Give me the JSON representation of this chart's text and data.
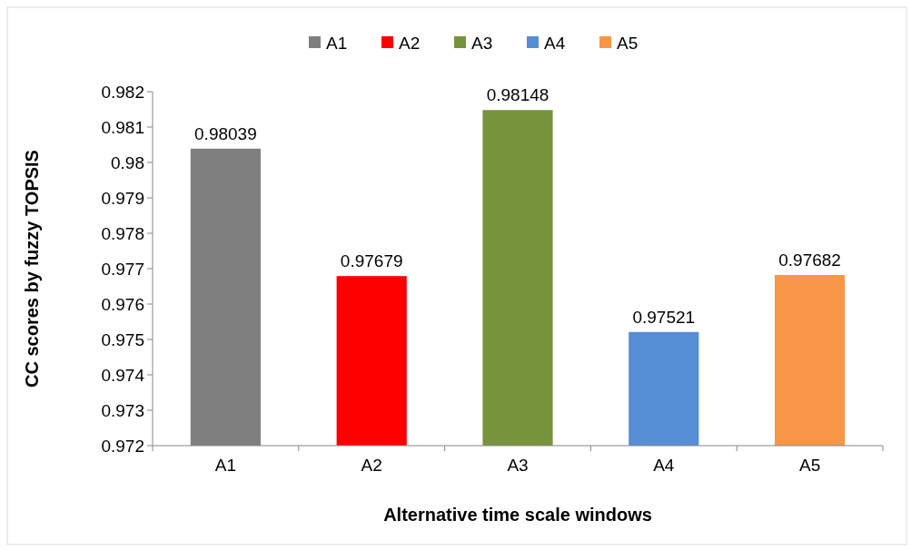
{
  "chart_data": {
    "type": "bar",
    "xlabel": "Alternative time scale windows",
    "ylabel": "CC scores by fuzzy TOPSIS",
    "categories": [
      "A1",
      "A2",
      "A3",
      "A4",
      "A5"
    ],
    "series": [
      {
        "name": "A1",
        "color": "#7f7f7f",
        "values": [
          0.98039,
          null,
          null,
          null,
          null
        ]
      },
      {
        "name": "A2",
        "color": "#ff0000",
        "values": [
          null,
          0.97679,
          null,
          null,
          null
        ]
      },
      {
        "name": "A3",
        "color": "#77933c",
        "values": [
          null,
          null,
          0.98148,
          null,
          null
        ]
      },
      {
        "name": "A4",
        "color": "#558ed5",
        "values": [
          null,
          null,
          null,
          0.97521,
          null
        ]
      },
      {
        "name": "A5",
        "color": "#f79646",
        "values": [
          null,
          null,
          null,
          null,
          0.97682
        ]
      }
    ],
    "ylim": [
      0.972,
      0.982
    ],
    "yticks": [
      0.972,
      0.973,
      0.974,
      0.975,
      0.976,
      0.977,
      0.978,
      0.979,
      0.98,
      0.981,
      0.982
    ],
    "data_labels": true,
    "legend": "top",
    "grid": false
  }
}
